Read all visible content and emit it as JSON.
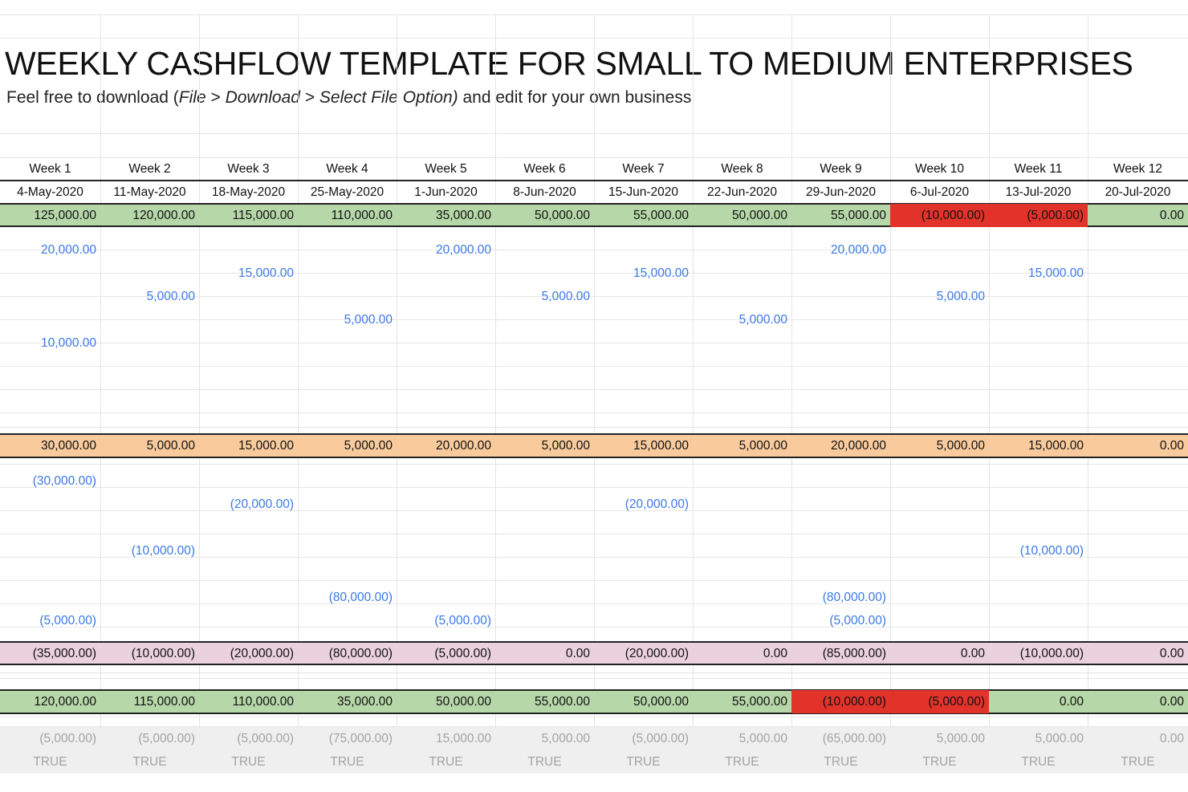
{
  "sheet": {
    "title": "WEEKLY CASHFLOW TEMPLATE FOR SMALL TO MEDIUM ENTERPRISES",
    "subtitle": {
      "prefix": "Feel free to download (",
      "file": "File",
      "sep1": " > ",
      "download": "Download",
      "sep2": " > ",
      "option": "Select File Option)",
      "suffix": " and edit for your own business"
    }
  },
  "colors": {
    "green": "#b6d7a8",
    "orange": "#f9cb9c",
    "pink": "#ead1dc",
    "red": "#e2332a",
    "blue_text": "#3b78e7",
    "grey_text": "#a3a3a3",
    "grey_band": "#efefef"
  },
  "weeks": [
    "Week 1",
    "Week 2",
    "Week 3",
    "Week 4",
    "Week 5",
    "Week 6",
    "Week 7",
    "Week 8",
    "Week 9",
    "Week 10",
    "Week 11",
    "Week 12"
  ],
  "dates": [
    "4-May-2020",
    "11-May-2020",
    "18-May-2020",
    "25-May-2020",
    "1-Jun-2020",
    "8-Jun-2020",
    "15-Jun-2020",
    "22-Jun-2020",
    "29-Jun-2020",
    "6-Jul-2020",
    "13-Jul-2020",
    "20-Jul-2020"
  ],
  "opening": [
    "125,000.00",
    "120,000.00",
    "115,000.00",
    "110,000.00",
    "35,000.00",
    "50,000.00",
    "55,000.00",
    "50,000.00",
    "55,000.00",
    "(10,000.00)",
    "(5,000.00)",
    "0.00"
  ],
  "opening_red": [
    false,
    false,
    false,
    false,
    false,
    false,
    false,
    false,
    false,
    true,
    true,
    false
  ],
  "income_rows": [
    [
      "20,000.00",
      "",
      "",
      "",
      "20,000.00",
      "",
      "",
      "",
      "20,000.00",
      "",
      "",
      ""
    ],
    [
      "",
      "",
      "15,000.00",
      "",
      "",
      "",
      "15,000.00",
      "",
      "",
      "",
      "15,000.00",
      ""
    ],
    [
      "",
      "5,000.00",
      "",
      "",
      "",
      "5,000.00",
      "",
      "",
      "",
      "5,000.00",
      "",
      ""
    ],
    [
      "",
      "",
      "",
      "5,000.00",
      "",
      "",
      "",
      "5,000.00",
      "",
      "",
      "",
      ""
    ],
    [
      "10,000.00",
      "",
      "",
      "",
      "",
      "",
      "",
      "",
      "",
      "",
      "",
      ""
    ]
  ],
  "income_total": [
    "30,000.00",
    "5,000.00",
    "15,000.00",
    "5,000.00",
    "20,000.00",
    "5,000.00",
    "15,000.00",
    "5,000.00",
    "20,000.00",
    "5,000.00",
    "15,000.00",
    "0.00"
  ],
  "expense_rows": [
    [
      "(30,000.00)",
      "",
      "",
      "",
      "",
      "",
      "",
      "",
      "",
      "",
      "",
      ""
    ],
    [
      "",
      "",
      "(20,000.00)",
      "",
      "",
      "",
      "(20,000.00)",
      "",
      "",
      "",
      "",
      ""
    ],
    [
      "",
      "",
      "",
      "",
      "",
      "",
      "",
      "",
      "",
      "",
      "",
      ""
    ],
    [
      "",
      "(10,000.00)",
      "",
      "",
      "",
      "",
      "",
      "",
      "",
      "",
      "(10,000.00)",
      ""
    ],
    [
      "",
      "",
      "",
      "",
      "",
      "",
      "",
      "",
      "",
      "",
      "",
      ""
    ],
    [
      "",
      "",
      "",
      "(80,000.00)",
      "",
      "",
      "",
      "",
      "(80,000.00)",
      "",
      "",
      ""
    ],
    [
      "(5,000.00)",
      "",
      "",
      "",
      "(5,000.00)",
      "",
      "",
      "",
      "(5,000.00)",
      "",
      "",
      ""
    ]
  ],
  "expense_total": [
    "(35,000.00)",
    "(10,000.00)",
    "(20,000.00)",
    "(80,000.00)",
    "(5,000.00)",
    "0.00",
    "(20,000.00)",
    "0.00",
    "(85,000.00)",
    "0.00",
    "(10,000.00)",
    "0.00"
  ],
  "closing": [
    "120,000.00",
    "115,000.00",
    "110,000.00",
    "35,000.00",
    "50,000.00",
    "55,000.00",
    "50,000.00",
    "55,000.00",
    "(10,000.00)",
    "(5,000.00)",
    "0.00",
    "0.00"
  ],
  "closing_red": [
    false,
    false,
    false,
    false,
    false,
    false,
    false,
    false,
    true,
    true,
    false,
    false
  ],
  "net_change": [
    "(5,000.00)",
    "(5,000.00)",
    "(5,000.00)",
    "(75,000.00)",
    "15,000.00",
    "5,000.00",
    "(5,000.00)",
    "5,000.00",
    "(65,000.00)",
    "5,000.00",
    "5,000.00",
    "0.00"
  ],
  "check": [
    "TRUE",
    "TRUE",
    "TRUE",
    "TRUE",
    "TRUE",
    "TRUE",
    "TRUE",
    "TRUE",
    "TRUE",
    "TRUE",
    "TRUE",
    "TRUE"
  ]
}
